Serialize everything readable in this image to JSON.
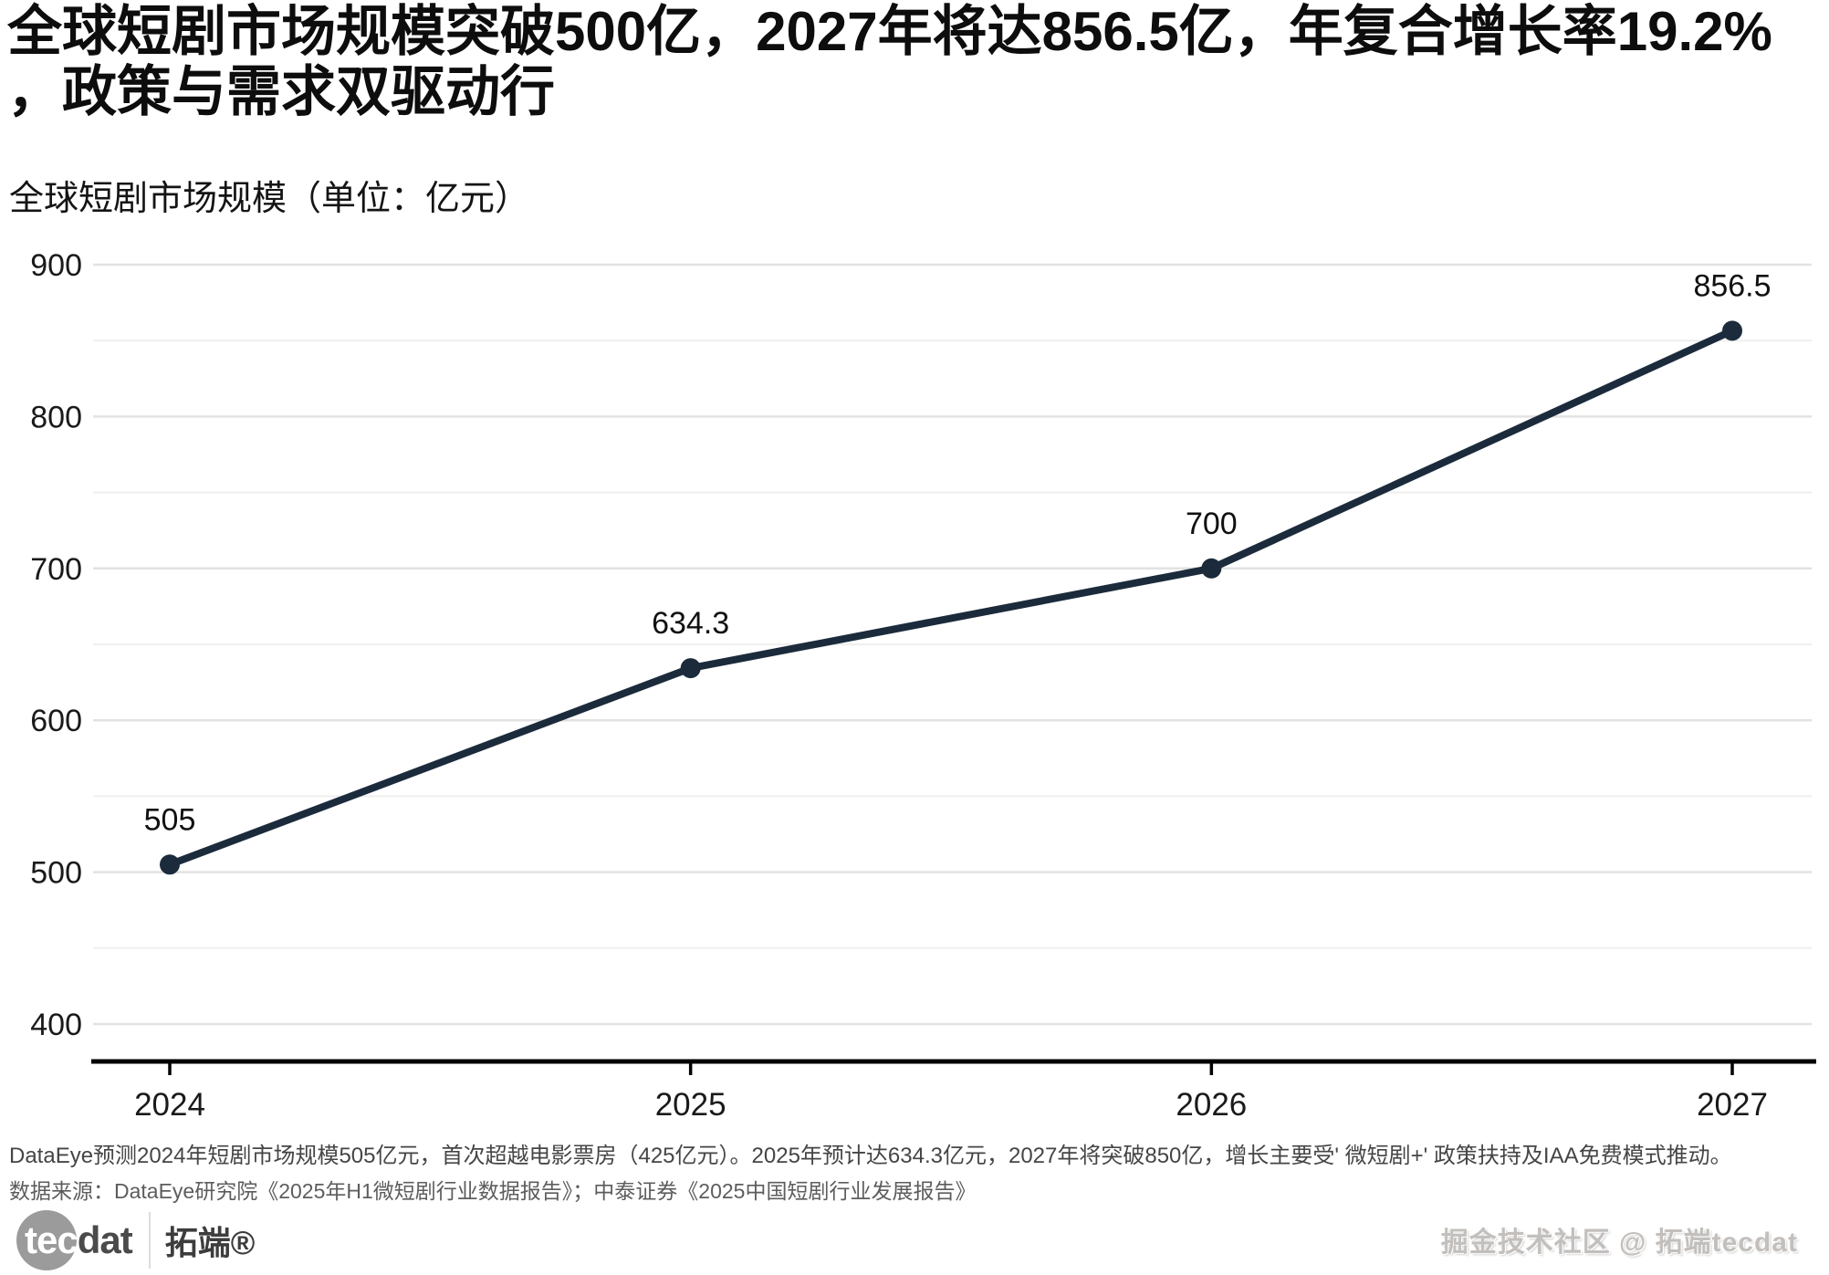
{
  "page": {
    "title": "全球短剧市场规模突破500亿，2027年将达856.5亿，年复合增长率19.2%，政策与需求双驱动行",
    "subtitle": "全球短剧市场规模（单位：亿元）"
  },
  "chart_data": {
    "type": "line",
    "title": "全球短剧市场规模（单位：亿元）",
    "categories": [
      "2024",
      "2025",
      "2026",
      "2027"
    ],
    "series": [
      {
        "name": "全球短剧市场规模",
        "values": [
          505,
          634.3,
          700,
          856.5
        ]
      }
    ],
    "point_labels": [
      "505",
      "634.3",
      "700",
      "856.5"
    ],
    "xlabel": "",
    "ylabel": "亿元",
    "ylim": [
      400,
      900
    ],
    "y_major_ticks": [
      400,
      500,
      600,
      700,
      800,
      900
    ],
    "y_minor_ticks": [
      450,
      550,
      650,
      750,
      850
    ],
    "grid": "horizontal",
    "legend_position": "none",
    "colors": {
      "line": "#1b2b3c",
      "point": "#1b2b3c",
      "grid_major": "#e2e2e2",
      "grid_minor": "#efefef",
      "axis": "#000000",
      "tick_label": "#1a1a1a",
      "data_label": "#111111"
    }
  },
  "footnotes": {
    "line1": "DataEye预测2024年短剧市场规模505亿元，首次超越电影票房（425亿元）。2025年预计达634.3亿元，2027年将突破850亿，增长主要受' 微短剧+' 政策扶持及IAA免费模式推动。",
    "line2": "数据来源：DataEye研究院《2025年H1微短剧行业数据报告》；中泰证券《2025中国短剧行业发展报告》"
  },
  "branding": {
    "logo_tec": "tec",
    "logo_dat": "dat",
    "logo_cn": "拓端®",
    "watermark": "掘金技术社区 @ 拓端tecdat"
  }
}
